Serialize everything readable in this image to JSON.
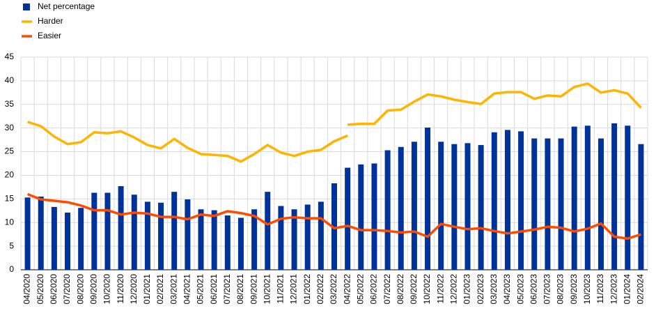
{
  "chart_data": {
    "type": "bar",
    "categories": [
      "04/2020",
      "05/2020",
      "06/2020",
      "07/2020",
      "08/2020",
      "09/2020",
      "10/2020",
      "11/2020",
      "12/2020",
      "01/2021",
      "02/2021",
      "03/2021",
      "04/2021",
      "05/2021",
      "06/2021",
      "07/2021",
      "08/2021",
      "09/2021",
      "10/2021",
      "11/2021",
      "12/2021",
      "01/2022",
      "02/2022",
      "03/2022",
      "04/2022",
      "05/2022",
      "06/2022",
      "07/2022",
      "08/2022",
      "09/2022",
      "10/2022",
      "11/2022",
      "12/2022",
      "01/2023",
      "02/2023",
      "03/2023",
      "04/2023",
      "05/2023",
      "06/2023",
      "07/2023",
      "08/2023",
      "09/2023",
      "10/2023",
      "11/2023",
      "12/2023",
      "01/2024",
      "02/2024"
    ],
    "series": [
      {
        "name": "Net percentage",
        "type": "bar",
        "color": "#003399",
        "values": [
          15.3,
          15.5,
          13.3,
          12.1,
          13.1,
          16.3,
          16.3,
          17.7,
          15.9,
          14.4,
          14.2,
          16.5,
          14.9,
          12.8,
          12.6,
          11.5,
          11.0,
          12.8,
          16.5,
          13.5,
          12.8,
          13.8,
          14.4,
          18.3,
          21.6,
          22.3,
          22.5,
          25.3,
          26.0,
          27.1,
          30.1,
          27.1,
          26.6,
          26.8,
          26.4,
          29.1,
          29.6,
          29.3,
          27.8,
          27.8,
          27.8,
          30.3,
          30.5,
          27.8,
          31.0,
          30.5,
          26.6
        ]
      },
      {
        "name": "Harder",
        "type": "line",
        "color": "#ffb400",
        "values": [
          31.3,
          30.4,
          28.2,
          26.6,
          27.0,
          29.1,
          28.9,
          29.3,
          28.0,
          26.4,
          25.7,
          27.7,
          25.8,
          24.5,
          24.3,
          24.1,
          22.9,
          24.5,
          26.4,
          24.8,
          24.1,
          25.0,
          25.4,
          27.2,
          28.4,
          null,
          null,
          null,
          null,
          null,
          null,
          null,
          null,
          null,
          null,
          null,
          null,
          null,
          null,
          null,
          null,
          null,
          null,
          null,
          null,
          null,
          null
        ]
      },
      {
        "name": "Harder",
        "type": "line",
        "color": "#ffb400",
        "values": [
          null,
          null,
          null,
          null,
          null,
          null,
          null,
          null,
          null,
          null,
          null,
          null,
          null,
          null,
          null,
          null,
          null,
          null,
          null,
          null,
          null,
          null,
          null,
          null,
          30.7,
          30.9,
          30.9,
          33.7,
          33.9,
          35.6,
          37.1,
          36.7,
          36.0,
          35.5,
          35.1,
          37.3,
          37.6,
          37.6,
          36.2,
          36.9,
          36.7,
          38.7,
          39.4,
          37.5,
          38.0,
          37.3,
          34.3
        ]
      },
      {
        "name": "Easier",
        "type": "line",
        "color": "#ff4b00",
        "values": [
          16.0,
          14.9,
          14.6,
          14.3,
          13.6,
          12.6,
          12.6,
          11.7,
          12.1,
          11.9,
          11.2,
          11.2,
          10.7,
          11.7,
          11.4,
          12.4,
          12.0,
          11.4,
          9.6,
          10.8,
          11.1,
          10.9,
          10.9,
          8.8,
          9.3,
          8.4,
          8.4,
          8.2,
          7.9,
          8.1,
          7.0,
          9.7,
          9.1,
          8.6,
          8.8,
          8.2,
          7.7,
          8.1,
          8.5,
          9.1,
          8.9,
          8.1,
          8.7,
          9.8,
          7.0,
          6.6,
          7.5
        ]
      }
    ],
    "ylim": [
      0,
      45
    ],
    "yticks": [
      0,
      5,
      10,
      15,
      20,
      25,
      30,
      35,
      40,
      45
    ],
    "grid": true,
    "legend": "top-left"
  }
}
